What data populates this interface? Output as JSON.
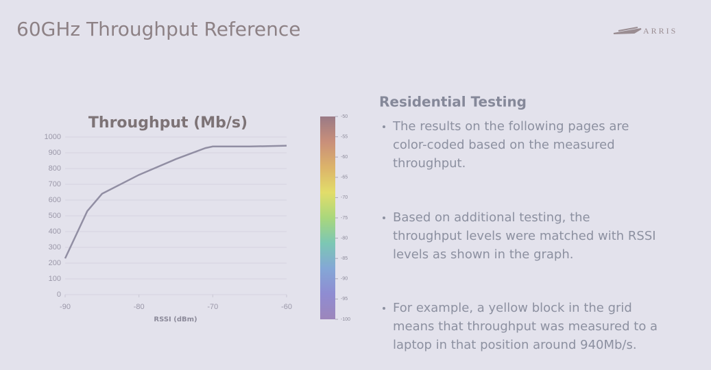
{
  "slide": {
    "title": "60GHz Throughput Reference",
    "logo": "ARRIS",
    "heading": "Residential Testing",
    "bullets": [
      [
        "The results on the following pages are",
        "color-coded based on the measured",
        "throughput."
      ],
      [
        "Based on additional testing, the",
        "throughput levels were matched with RSSI",
        "levels as shown in the graph."
      ],
      [
        "For example, a yellow block in the grid",
        "means that throughput was measured to a",
        "laptop in that position around 940Mb/s."
      ]
    ]
  },
  "chart_data": {
    "type": "line",
    "title": "Throughput (Mb/s)",
    "x_label": "RSSI (dBm)",
    "x": [
      -90,
      -87,
      -85,
      -80,
      -75,
      -71,
      -70,
      -65,
      -60
    ],
    "values": [
      230,
      530,
      640,
      760,
      860,
      930,
      940,
      940,
      945
    ],
    "color": "#918ea3",
    "xlim": [
      -90,
      -60
    ],
    "xticks": [
      -90,
      -80,
      -70,
      -60
    ],
    "ylim": [
      0,
      1000
    ],
    "yticks": [
      0,
      100,
      200,
      300,
      400,
      500,
      600,
      700,
      800,
      900,
      1000
    ],
    "grid": true,
    "colorbar": {
      "lim": [
        -100,
        -50
      ],
      "ticks": [
        -50,
        -55,
        -60,
        -65,
        -70,
        -75,
        -80,
        -85,
        -90,
        -95,
        -100
      ],
      "colors": [
        "#9a7a86",
        "#c98f7a",
        "#dcb36a",
        "#e2dd6a",
        "#a9d77c",
        "#7cc7b4",
        "#84a7d6",
        "#8f8cd2",
        "#9d86bb"
      ]
    }
  }
}
